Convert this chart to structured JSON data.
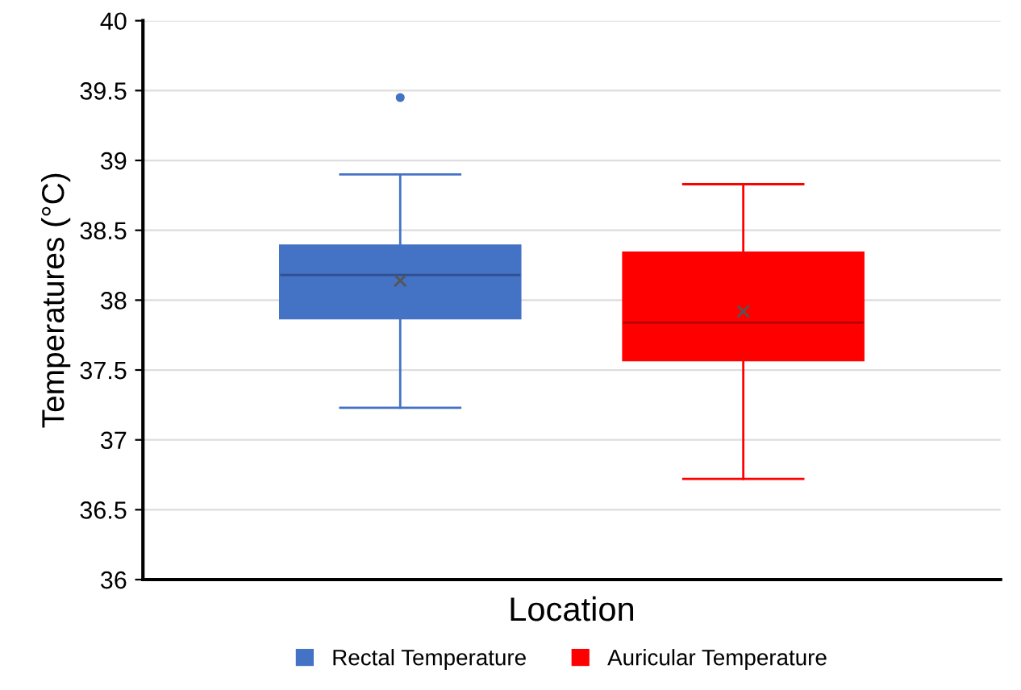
{
  "chart_data": {
    "type": "box",
    "xlabel": "Location",
    "ylabel": "Temperatures (°C)",
    "categories": [
      null
    ],
    "ylim": [
      36,
      40
    ],
    "yticks": [
      36,
      36.5,
      37,
      37.5,
      38,
      38.5,
      39,
      39.5,
      40
    ],
    "grid": "y",
    "legend": "bottom",
    "series": [
      {
        "name": "Rectal Temperature",
        "color": "#4472c4",
        "boxes": [
          {
            "low": 37.23,
            "q1": 37.87,
            "median": 38.18,
            "q3": 38.39,
            "high": 38.9,
            "mean": 38.14,
            "outliers": [
              39.45
            ]
          }
        ]
      },
      {
        "name": "Auricular Temperature",
        "color": "#ff0000",
        "boxes": [
          {
            "low": 36.72,
            "q1": 37.57,
            "median": 37.84,
            "q3": 38.34,
            "high": 38.83,
            "mean": 37.92
          }
        ]
      }
    ]
  }
}
